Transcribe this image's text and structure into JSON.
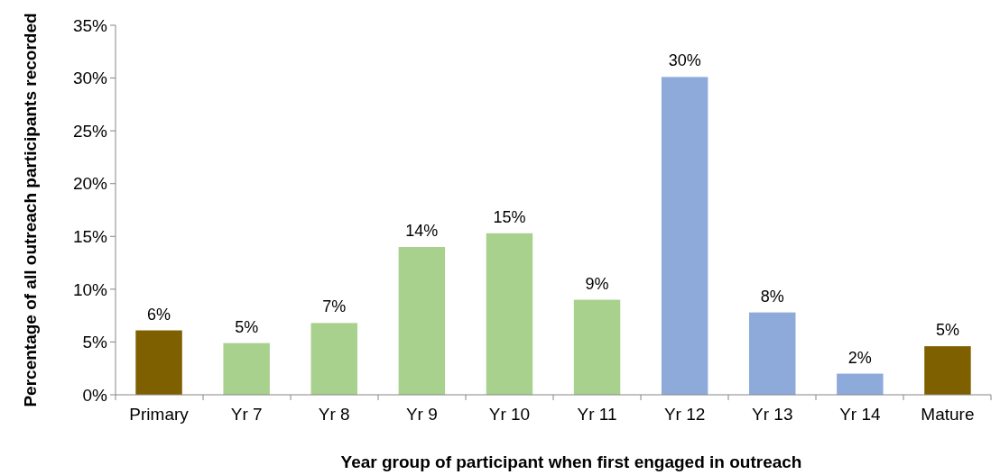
{
  "chart_data": {
    "type": "bar",
    "xlabel": "Year group of participant when first engaged in outreach",
    "ylabel": "Percentage of all outreach participants recorded",
    "categories": [
      "Primary",
      "Yr 7",
      "Yr 8",
      "Yr 9",
      "Yr 10",
      "Yr 11",
      "Yr 12",
      "Yr 13",
      "Yr 14",
      "Mature"
    ],
    "values": [
      6.1,
      4.9,
      6.8,
      14.0,
      15.3,
      9.0,
      30.1,
      7.8,
      2.0,
      4.6
    ],
    "colors": [
      "#7f6000",
      "#a9d18e",
      "#a9d18e",
      "#a9d18e",
      "#a9d18e",
      "#a9d18e",
      "#8eaadb",
      "#8eaadb",
      "#8eaadb",
      "#7f6000"
    ],
    "value_labels": [
      "6%",
      "5%",
      "7%",
      "14%",
      "15%",
      "9%",
      "30%",
      "8%",
      "2%",
      "5%"
    ],
    "ylim": [
      0,
      35
    ],
    "yticks": [
      {
        "value": 0,
        "label": "0%"
      },
      {
        "value": 5,
        "label": "5%"
      },
      {
        "value": 10,
        "label": "10%"
      },
      {
        "value": 15,
        "label": "15%"
      },
      {
        "value": 20,
        "label": "20%"
      },
      {
        "value": 25,
        "label": "25%"
      },
      {
        "value": 30,
        "label": "30%"
      },
      {
        "value": 35,
        "label": "35%"
      }
    ],
    "grid": false
  }
}
